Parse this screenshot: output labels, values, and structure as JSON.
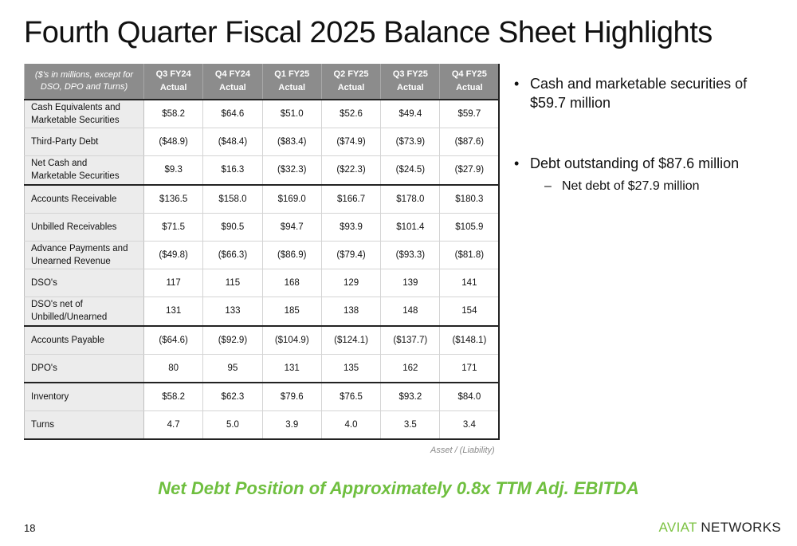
{
  "title": "Fourth Quarter Fiscal 2025 Balance Sheet Highlights",
  "table": {
    "header_note": "($'s in millions, except for DSO, DPO and Turns)",
    "columns": [
      {
        "period": "Q3 FY24",
        "type": "Actual"
      },
      {
        "period": "Q4 FY24",
        "type": "Actual"
      },
      {
        "period": "Q1 FY25",
        "type": "Actual"
      },
      {
        "period": "Q2 FY25",
        "type": "Actual"
      },
      {
        "period": "Q3 FY25",
        "type": "Actual"
      },
      {
        "period": "Q4 FY25",
        "type": "Actual"
      }
    ],
    "rows": [
      {
        "label_line1": "Cash Equivalents and",
        "label_line2": "Marketable Securities",
        "values": [
          "$58.2",
          "$64.6",
          "$51.0",
          "$52.6",
          "$49.4",
          "$59.7"
        ]
      },
      {
        "label_line1": "Third-Party Debt",
        "label_line2": "",
        "values": [
          "($48.9)",
          "($48.4)",
          "($83.4)",
          "($74.9)",
          "($73.9)",
          "($87.6)"
        ]
      },
      {
        "label_line1": "Net Cash and",
        "label_line2": "Marketable Securities",
        "values": [
          "$9.3",
          "$16.3",
          "($32.3)",
          "($22.3)",
          "($24.5)",
          "($27.9)"
        ]
      },
      {
        "label_line1": "Accounts Receivable",
        "label_line2": "",
        "values": [
          "$136.5",
          "$158.0",
          "$169.0",
          "$166.7",
          "$178.0",
          "$180.3"
        ]
      },
      {
        "label_line1": "Unbilled Receivables",
        "label_line2": "",
        "values": [
          "$71.5",
          "$90.5",
          "$94.7",
          "$93.9",
          "$101.4",
          "$105.9"
        ]
      },
      {
        "label_line1": "Advance Payments and",
        "label_line2": "Unearned Revenue",
        "values": [
          "($49.8)",
          "($66.3)",
          "($86.9)",
          "($79.4)",
          "($93.3)",
          "($81.8)"
        ]
      },
      {
        "label_line1": "DSO's",
        "label_line2": "",
        "values": [
          "117",
          "115",
          "168",
          "129",
          "139",
          "141"
        ]
      },
      {
        "label_line1": "DSO's net of",
        "label_line2": "Unbilled/Unearned",
        "values": [
          "131",
          "133",
          "185",
          "138",
          "148",
          "154"
        ]
      },
      {
        "label_line1": "Accounts Payable",
        "label_line2": "",
        "values": [
          "($64.6)",
          "($92.9)",
          "($104.9)",
          "($124.1)",
          "($137.7)",
          "($148.1)"
        ]
      },
      {
        "label_line1": "DPO's",
        "label_line2": "",
        "values": [
          "80",
          "95",
          "131",
          "135",
          "162",
          "171"
        ]
      },
      {
        "label_line1": "Inventory",
        "label_line2": "",
        "values": [
          "$58.2",
          "$62.3",
          "$79.6",
          "$76.5",
          "$93.2",
          "$84.0"
        ]
      },
      {
        "label_line1": "Turns",
        "label_line2": "",
        "values": [
          "4.7",
          "5.0",
          "3.9",
          "4.0",
          "3.5",
          "3.4"
        ]
      }
    ],
    "footnote": "Asset / (Liability)"
  },
  "bullets": {
    "b1": "Cash and marketable securities of $59.7 million",
    "b2": "Debt outstanding of $87.6 million",
    "b2_sub": "Net debt of $27.9 million",
    "bullet_char": "•",
    "dash_char": "–"
  },
  "highlight": "Net Debt Position of Approximately 0.8x TTM Adj. EBITDA",
  "footer": {
    "page_number": "18",
    "logo_part1": "AVIAT",
    "logo_part2": "NETWORKS"
  },
  "colors": {
    "header_bg": "#8c8c8c",
    "label_bg": "#ececec",
    "accent_green": "#6fbf3f"
  }
}
